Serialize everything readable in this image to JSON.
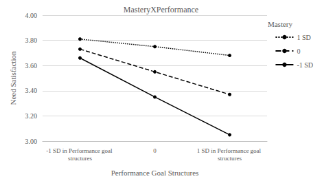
{
  "chart_data": {
    "type": "line",
    "title": "MasteryXPerformance",
    "x_label": "Performance Goal Structures",
    "y_label": "Need Satisfaction",
    "legend_title": "Mastery",
    "legend": "right",
    "grid": true,
    "categories": [
      "-1 SD in Performance goal structures",
      "0",
      "1 SD in Performance goal structures"
    ],
    "series": [
      {
        "name": "1 SD",
        "color": "#000000",
        "line_style": "dotted",
        "marker": "circle",
        "values": [
          3.81,
          3.75,
          3.68
        ]
      },
      {
        "name": "0",
        "color": "#000000",
        "line_style": "dashed",
        "marker": "circle",
        "values": [
          3.73,
          3.55,
          3.37
        ]
      },
      {
        "name": "-1 SD",
        "color": "#000000",
        "line_style": "solid",
        "marker": "circle",
        "values": [
          3.66,
          3.35,
          3.05
        ]
      }
    ],
    "ylim": [
      3.0,
      4.0
    ],
    "yticks": [
      {
        "value": 3.0,
        "label": "3.00"
      },
      {
        "value": 3.2,
        "label": "3.20"
      },
      {
        "value": 3.4,
        "label": "3.40"
      },
      {
        "value": 3.6,
        "label": "3.60"
      },
      {
        "value": 3.8,
        "label": "3.80"
      },
      {
        "value": 4.0,
        "label": "4.00"
      }
    ]
  }
}
